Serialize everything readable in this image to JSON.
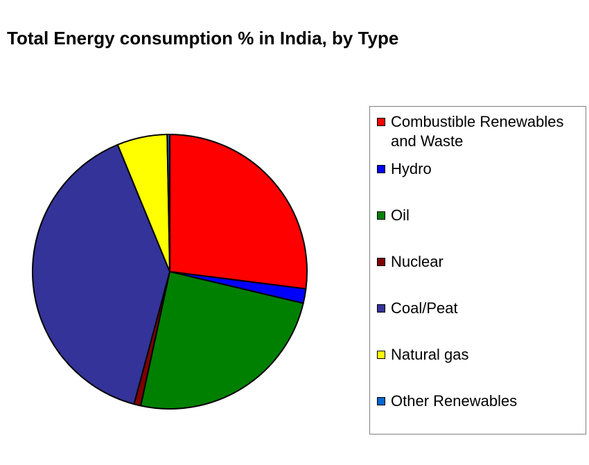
{
  "chart_data": {
    "type": "pie",
    "title": "Total Energy consumption % in India, by Type",
    "slices": [
      {
        "name": "Combustible Renewables and Waste",
        "value": 27.0,
        "color": "#ff0000"
      },
      {
        "name": "Hydro",
        "value": 1.7,
        "color": "#0000ff"
      },
      {
        "name": "Oil",
        "value": 24.7,
        "color": "#008000"
      },
      {
        "name": "Nuclear",
        "value": 0.8,
        "color": "#800000"
      },
      {
        "name": "Coal/Peat",
        "value": 39.6,
        "color": "#333399"
      },
      {
        "name": "Natural gas",
        "value": 5.9,
        "color": "#ffff00"
      },
      {
        "name": "Other Renewables",
        "value": 0.3,
        "color": "#0066cc"
      }
    ],
    "legend_position": "right",
    "start_angle": "12 o'clock",
    "direction": "clockwise"
  }
}
